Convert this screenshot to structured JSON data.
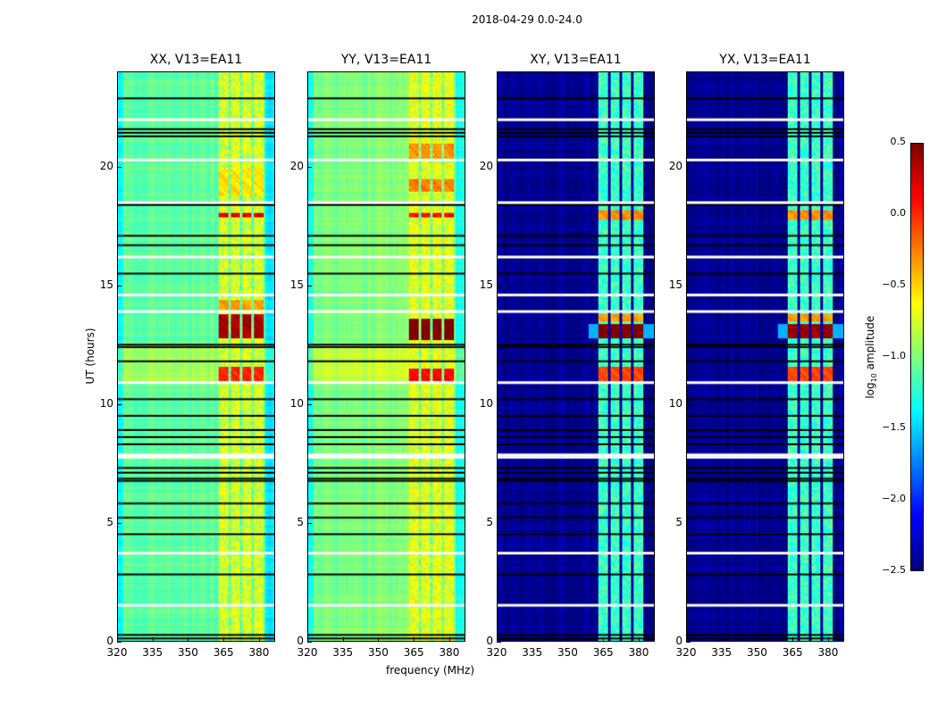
{
  "chart_data": {
    "type": "heatmap",
    "suptitle": "2018-04-29 0.0-24.0",
    "xlabel": "frequency (MHz)",
    "ylabel": "UT (hours)",
    "xlim": [
      320,
      386.8
    ],
    "ylim": [
      0,
      24
    ],
    "xticks": [
      "320",
      "335",
      "350",
      "365",
      "380"
    ],
    "xtick_values": [
      320,
      335,
      350,
      365,
      380
    ],
    "yticks": [
      "0",
      "5",
      "10",
      "15",
      "20"
    ],
    "ytick_values": [
      0,
      5,
      10,
      15,
      20
    ],
    "colorbar": {
      "label_main": "log",
      "label_sub": "10",
      "label_rest": " amplitude",
      "range": [
        -2.5,
        0.5
      ],
      "ticks": [
        "0.5",
        "0.0",
        "−0.5",
        "−1.0",
        "−1.5",
        "−2.0",
        "−2.5"
      ],
      "tick_values": [
        0.5,
        0.0,
        -0.5,
        -1.0,
        -1.5,
        -2.0,
        -2.5
      ],
      "colormap": "jet"
    },
    "band_MHz": [
      363,
      382
    ],
    "band_gaps_MHz": [
      367.5,
      372.5,
      377.5
    ],
    "flagged_white_hours": [
      22.0,
      20.3,
      18.5,
      16.2,
      14.6,
      13.9,
      10.9,
      7.85,
      7.75,
      3.7,
      1.5
    ],
    "flagged_black_hours": [
      22.9,
      21.6,
      21.45,
      21.3,
      18.4,
      17.1,
      16.7,
      15.5,
      12.5,
      12.4,
      11.8,
      10.2,
      9.5,
      8.9,
      8.6,
      8.3,
      7.3,
      7.1,
      6.85,
      6.75,
      5.8,
      5.2,
      4.5,
      2.8,
      0.25,
      0.1
    ],
    "panels": [
      {
        "title": "XX, V13=EA11",
        "kind": "parallel",
        "base": -1.1,
        "band": -0.75,
        "events": [
          {
            "hours": [
              17.9,
              18.1
            ],
            "value": 0.2
          },
          {
            "hours": [
              12.8,
              13.8
            ],
            "value": 0.35
          },
          {
            "hours": [
              11.0,
              11.6
            ],
            "value": 0.0
          },
          {
            "hours": [
              14.0,
              14.4
            ],
            "value": -0.35
          },
          {
            "hours": [
              18.8,
              20.0
            ],
            "value": -0.55
          }
        ]
      },
      {
        "title": "YY, V13=EA11",
        "kind": "parallel",
        "base": -1.0,
        "band": -0.7,
        "events": [
          {
            "hours": [
              17.9,
              18.1
            ],
            "value": 0.1
          },
          {
            "hours": [
              12.7,
              13.6
            ],
            "value": 0.5
          },
          {
            "hours": [
              11.0,
              11.5
            ],
            "value": 0.1
          },
          {
            "hours": [
              19.0,
              19.5
            ],
            "value": -0.25
          },
          {
            "hours": [
              20.3,
              21.0
            ],
            "value": -0.3
          }
        ]
      },
      {
        "title": "XY, V13=EA11",
        "kind": "cross",
        "base": -2.45,
        "band": -1.2,
        "events": [
          {
            "hours": [
              12.8,
              13.4
            ],
            "value": 0.5
          },
          {
            "hours": [
              11.0,
              11.6
            ],
            "value": -0.1
          },
          {
            "hours": [
              17.8,
              18.2
            ],
            "value": -0.3
          },
          {
            "hours": [
              13.5,
              13.8
            ],
            "value": -0.35
          }
        ]
      },
      {
        "title": "YX, V13=EA11",
        "kind": "cross",
        "base": -2.45,
        "band": -1.2,
        "events": [
          {
            "hours": [
              12.8,
              13.4
            ],
            "value": 0.4
          },
          {
            "hours": [
              11.0,
              11.6
            ],
            "value": -0.1
          },
          {
            "hours": [
              17.8,
              18.2
            ],
            "value": -0.3
          },
          {
            "hours": [
              13.5,
              13.8
            ],
            "value": -0.35
          }
        ]
      }
    ]
  }
}
